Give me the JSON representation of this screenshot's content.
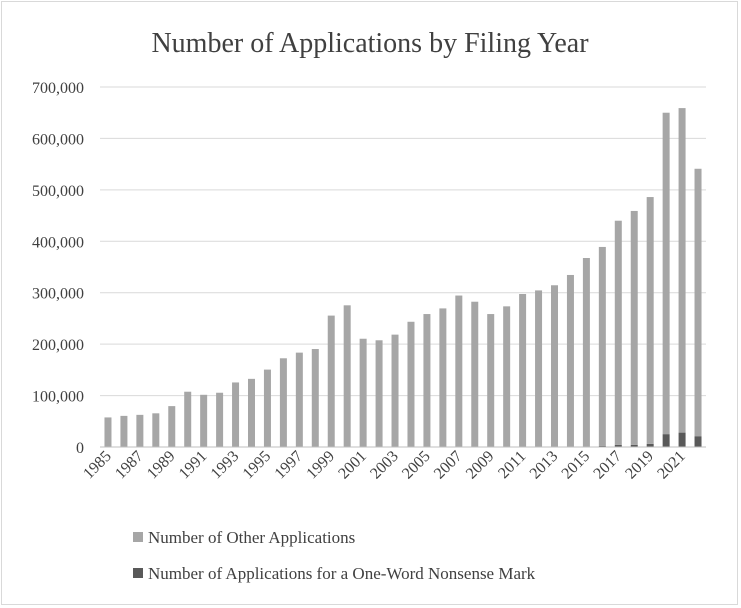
{
  "chart_data": {
    "type": "bar",
    "stacked": true,
    "title": "Number of Applications by Filing Year",
    "xlabel": "",
    "ylabel": "",
    "ylim": [
      0,
      700000
    ],
    "y_ticks": [
      0,
      100000,
      200000,
      300000,
      400000,
      500000,
      600000,
      700000
    ],
    "y_tick_labels": [
      "0",
      "100,000",
      "200,000",
      "300,000",
      "400,000",
      "500,000",
      "600,000",
      "700,000"
    ],
    "categories": [
      "1985",
      "1986",
      "1987",
      "1988",
      "1989",
      "1990",
      "1991",
      "1992",
      "1993",
      "1994",
      "1995",
      "1996",
      "1997",
      "1998",
      "1999",
      "2000",
      "2001",
      "2002",
      "2003",
      "2004",
      "2005",
      "2006",
      "2007",
      "2008",
      "2009",
      "2010",
      "2011",
      "2012",
      "2013",
      "2014",
      "2015",
      "2016",
      "2017",
      "2018",
      "2019",
      "2020",
      "2021",
      "2022"
    ],
    "x_tick_labels": [
      "1985",
      "1987",
      "1989",
      "1991",
      "1993",
      "1995",
      "1997",
      "1999",
      "2001",
      "2003",
      "2005",
      "2007",
      "2009",
      "2011",
      "2013",
      "2015",
      "2017",
      "2019",
      "2021"
    ],
    "grid": true,
    "legend_position": "bottom",
    "series": [
      {
        "name": "Number of Other Applications",
        "color": "#a6a6a6",
        "values": [
          57000,
          60000,
          62000,
          65000,
          79000,
          107000,
          101000,
          105000,
          125000,
          132000,
          150000,
          172000,
          183000,
          190000,
          255000,
          275000,
          210000,
          207000,
          218000,
          243000,
          258000,
          269000,
          294000,
          282000,
          258000,
          273000,
          297000,
          304000,
          314000,
          334000,
          367000,
          387000,
          436000,
          455000,
          480000,
          625000,
          631000,
          520000
        ]
      },
      {
        "name": "Number of Applications for a One-Word Nonsense Mark",
        "color": "#595959",
        "values": [
          500,
          500,
          500,
          500,
          500,
          500,
          500,
          500,
          500,
          500,
          500,
          500,
          500,
          500,
          500,
          500,
          500,
          500,
          500,
          500,
          500,
          500,
          500,
          500,
          500,
          500,
          500,
          500,
          500,
          500,
          500,
          2000,
          4000,
          4000,
          6000,
          25000,
          28000,
          21000
        ]
      }
    ]
  }
}
